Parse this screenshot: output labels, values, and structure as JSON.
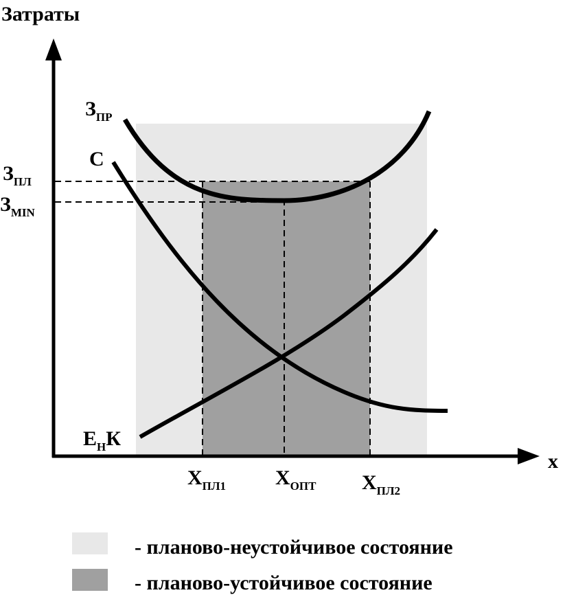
{
  "diagram": {
    "y_axis_label": "Затраты",
    "x_axis_label": "x",
    "curves": {
      "total": {
        "main": "З",
        "sub": "ПР"
      },
      "operating": {
        "main": "С",
        "sub": ""
      },
      "capital": {
        "main": "Е",
        "sub": "Н",
        "tail": "К"
      }
    },
    "levels": {
      "planned": {
        "main": "З",
        "sub": "ПЛ"
      },
      "minimum": {
        "main": "З",
        "sub": "MIN"
      }
    },
    "x_marks": {
      "plan1": {
        "main": "Х",
        "sub": "ПЛ1"
      },
      "optimum": {
        "main": "Х",
        "sub": "ОПТ"
      },
      "plan2": {
        "main": "Х",
        "sub": "ПЛ2"
      }
    },
    "colors": {
      "unstable_zone": "#e8e8e8",
      "stable_zone": "#a0a0a0",
      "lines": "#000000"
    }
  },
  "legend": {
    "items": [
      {
        "color": "#e8e8e8",
        "label": "- планово-неустойчивое состояние"
      },
      {
        "color": "#a0a0a0",
        "label": "- планово-устойчивое состояние"
      }
    ]
  }
}
